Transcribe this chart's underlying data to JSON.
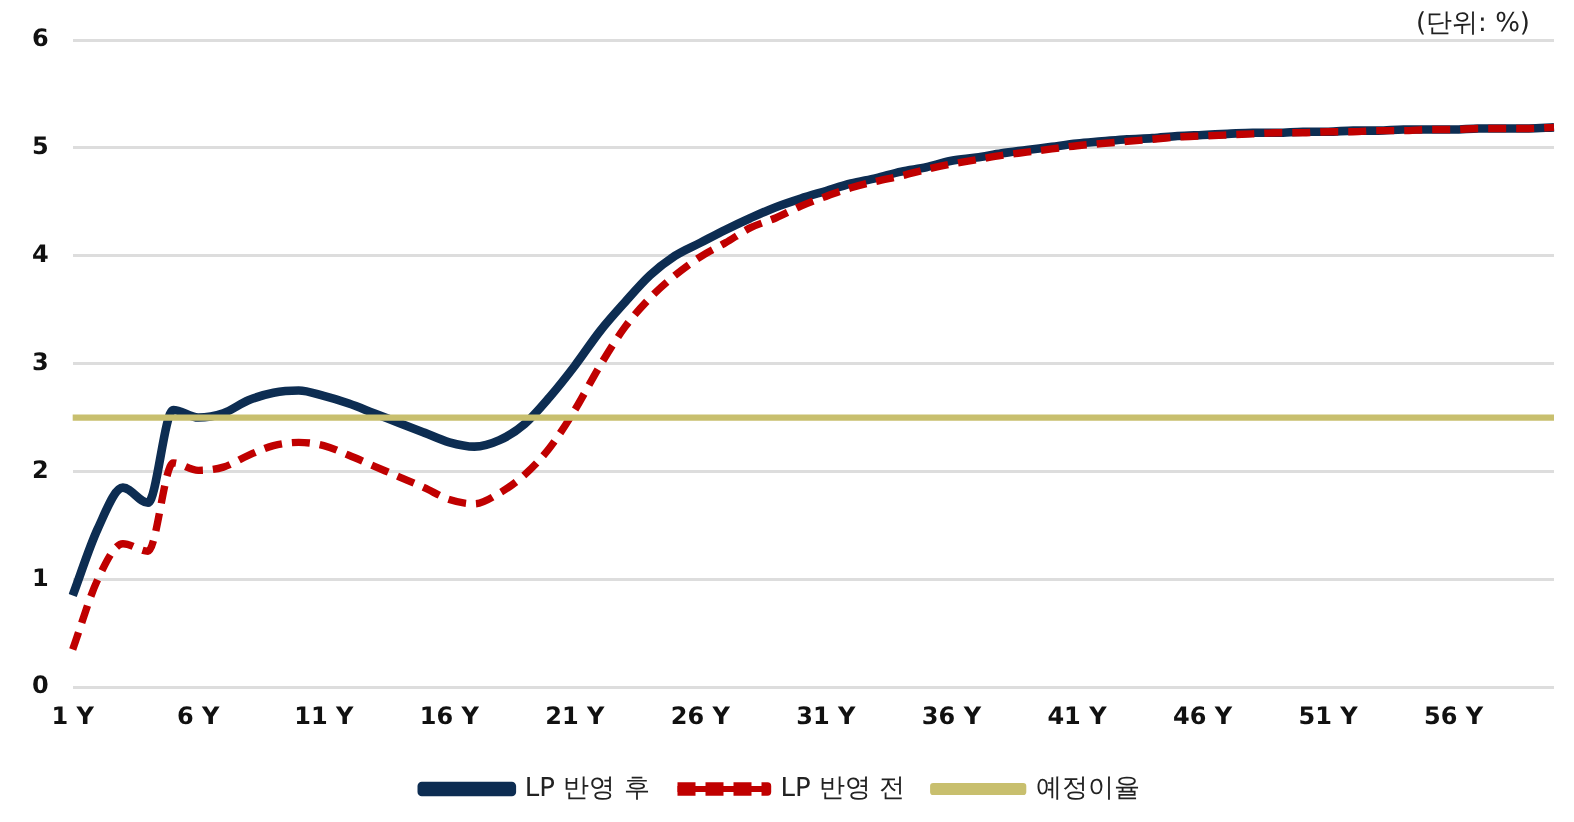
{
  "chart_data": {
    "type": "line",
    "annotations": [
      "(단위: %)"
    ],
    "categories": [
      "1 Y",
      null,
      null,
      null,
      null,
      "6 Y",
      null,
      null,
      null,
      null,
      "11 Y",
      null,
      null,
      null,
      null,
      "16 Y",
      null,
      null,
      null,
      null,
      "21 Y",
      null,
      null,
      null,
      null,
      "26 Y",
      null,
      null,
      null,
      null,
      "31 Y",
      null,
      null,
      null,
      null,
      "36 Y",
      null,
      null,
      null,
      null,
      "41 Y",
      null,
      null,
      null,
      null,
      "46 Y",
      null,
      null,
      null,
      null,
      "51 Y",
      null,
      null,
      null,
      null,
      "56 Y",
      null,
      null,
      null,
      null
    ],
    "series": [
      {
        "name": "LP 반영 후",
        "color": "#0d2d52",
        "line_style": "solid",
        "values": [
          0.85,
          1.47,
          1.85,
          1.71,
          2.57,
          2.5,
          2.54,
          2.66,
          2.73,
          2.75,
          2.7,
          2.63,
          2.54,
          2.45,
          2.36,
          2.27,
          2.23,
          2.29,
          2.44,
          2.69,
          2.98,
          3.3,
          3.57,
          3.82,
          4.0,
          4.12,
          4.24,
          4.35,
          4.45,
          4.53,
          4.6,
          4.67,
          4.72,
          4.78,
          4.82,
          4.88,
          4.91,
          4.95,
          4.98,
          5.01,
          5.04,
          5.06,
          5.08,
          5.09,
          5.11,
          5.12,
          5.13,
          5.14,
          5.14,
          5.15,
          5.15,
          5.16,
          5.16,
          5.17,
          5.17,
          5.17,
          5.18,
          5.18,
          5.18,
          5.19
        ]
      },
      {
        "name": "LP 반영 전",
        "color": "#c00000",
        "line_style": "dashed",
        "values": [
          0.35,
          1.0,
          1.33,
          1.26,
          2.08,
          2.01,
          2.04,
          2.15,
          2.24,
          2.27,
          2.24,
          2.15,
          2.05,
          1.95,
          1.85,
          1.74,
          1.7,
          1.8,
          1.97,
          2.22,
          2.57,
          2.98,
          3.34,
          3.61,
          3.82,
          3.99,
          4.12,
          4.26,
          4.35,
          4.46,
          4.55,
          4.63,
          4.69,
          4.74,
          4.8,
          4.85,
          4.89,
          4.93,
          4.96,
          4.99,
          5.02,
          5.04,
          5.06,
          5.08,
          5.1,
          5.11,
          5.12,
          5.13,
          5.14,
          5.14,
          5.15,
          5.15,
          5.16,
          5.16,
          5.17,
          5.17,
          5.18,
          5.18,
          5.18,
          5.19
        ]
      },
      {
        "name": "예정이율",
        "color": "#c8bf6e",
        "line_style": "solid",
        "values": [
          2.5,
          2.5,
          2.5,
          2.5,
          2.5,
          2.5,
          2.5,
          2.5,
          2.5,
          2.5,
          2.5,
          2.5,
          2.5,
          2.5,
          2.5,
          2.5,
          2.5,
          2.5,
          2.5,
          2.5,
          2.5,
          2.5,
          2.5,
          2.5,
          2.5,
          2.5,
          2.5,
          2.5,
          2.5,
          2.5,
          2.5,
          2.5,
          2.5,
          2.5,
          2.5,
          2.5,
          2.5,
          2.5,
          2.5,
          2.5,
          2.5,
          2.5,
          2.5,
          2.5,
          2.5,
          2.5,
          2.5,
          2.5,
          2.5,
          2.5,
          2.5,
          2.5,
          2.5,
          2.5,
          2.5,
          2.5,
          2.5,
          2.5,
          2.5,
          2.5
        ]
      }
    ],
    "ylim": [
      0,
      6
    ],
    "yticks": [
      0,
      1,
      2,
      3,
      4,
      5,
      6
    ],
    "grid": "y",
    "legend": "bottom",
    "marker": "none"
  }
}
